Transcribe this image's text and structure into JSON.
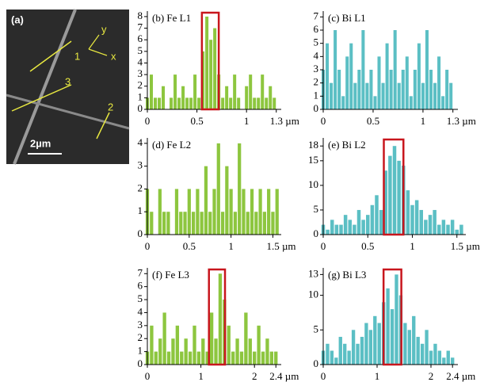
{
  "image": {
    "panel_label": "(a)",
    "line_labels": [
      "1",
      "2",
      "3"
    ],
    "axis_labels": [
      "y",
      "x"
    ],
    "scale_label": "2µm"
  },
  "chart_data": [
    {
      "type": "bar",
      "title": "(b) Fe L1",
      "color": "#8dc63f",
      "xlim": [
        0,
        1.35
      ],
      "ylim": [
        0,
        8.2
      ],
      "xticks": [
        0,
        0.5,
        1,
        {
          "value": 1.3,
          "label": "1.3 µm"
        }
      ],
      "yticks": [
        0,
        1,
        2,
        3,
        4,
        5,
        6,
        7,
        8
      ],
      "highlight": [
        0.55,
        0.72
      ],
      "x": [
        0,
        0.04,
        0.08,
        0.12,
        0.16,
        0.2,
        0.24,
        0.28,
        0.32,
        0.36,
        0.4,
        0.44,
        0.48,
        0.52,
        0.56,
        0.6,
        0.64,
        0.68,
        0.72,
        0.76,
        0.8,
        0.84,
        0.88,
        0.92,
        0.96,
        1,
        1.04,
        1.08,
        1.12,
        1.16,
        1.2,
        1.24,
        1.28
      ],
      "values": [
        1,
        3,
        1,
        1,
        2,
        0,
        1,
        3,
        1,
        2,
        1,
        1,
        3,
        1,
        5,
        8,
        6,
        7,
        3,
        1,
        2,
        1,
        3,
        1,
        0,
        2,
        3,
        1,
        1,
        3,
        1,
        2,
        1
      ]
    },
    {
      "type": "bar",
      "title": "(c) Bi L1",
      "color": "#5bbfc4",
      "xlim": [
        0,
        1.35
      ],
      "ylim": [
        0,
        7.2
      ],
      "xticks": [
        0,
        0.5,
        1,
        {
          "value": 1.3,
          "label": "1.3 µm"
        }
      ],
      "yticks": [
        0,
        1,
        2,
        3,
        4,
        5,
        6,
        7
      ],
      "x": [
        0,
        0.04,
        0.08,
        0.12,
        0.16,
        0.2,
        0.24,
        0.28,
        0.32,
        0.36,
        0.4,
        0.44,
        0.48,
        0.52,
        0.56,
        0.6,
        0.64,
        0.68,
        0.72,
        0.76,
        0.8,
        0.84,
        0.88,
        0.92,
        0.96,
        1,
        1.04,
        1.08,
        1.12,
        1.16,
        1.2,
        1.24,
        1.28
      ],
      "values": [
        3,
        5,
        2,
        6,
        3,
        1,
        4,
        5,
        2,
        3,
        6,
        2,
        3,
        1,
        4,
        2,
        5,
        3,
        6,
        2,
        3,
        4,
        1,
        3,
        5,
        2,
        6,
        3,
        2,
        4,
        1,
        3,
        2
      ]
    },
    {
      "type": "bar",
      "title": "(d) Fe L2",
      "color": "#8dc63f",
      "xlim": [
        0,
        1.6
      ],
      "ylim": [
        0,
        4.1
      ],
      "xticks": [
        0,
        0.5,
        1,
        {
          "value": 1.5,
          "label": "1.5 µm"
        }
      ],
      "yticks": [
        0,
        1,
        2,
        3,
        4
      ],
      "x": [
        0,
        0.05,
        0.1,
        0.15,
        0.2,
        0.25,
        0.3,
        0.35,
        0.4,
        0.45,
        0.5,
        0.55,
        0.6,
        0.65,
        0.7,
        0.75,
        0.8,
        0.85,
        0.9,
        0.95,
        1,
        1.05,
        1.1,
        1.15,
        1.2,
        1.25,
        1.3,
        1.35,
        1.4,
        1.45,
        1.5,
        1.55
      ],
      "values": [
        2,
        1,
        0,
        2,
        1,
        1,
        0,
        2,
        1,
        1,
        2,
        1,
        2,
        1,
        3,
        1,
        2,
        4,
        1,
        3,
        2,
        1,
        4,
        2,
        1,
        2,
        1,
        2,
        1,
        2,
        1,
        2
      ]
    },
    {
      "type": "bar",
      "title": "(e) Bi L2",
      "color": "#5bbfc4",
      "xlim": [
        0,
        1.6
      ],
      "ylim": [
        0,
        19
      ],
      "xticks": [
        0,
        0.5,
        1,
        {
          "value": 1.5,
          "label": "1.5 µm"
        }
      ],
      "yticks": [
        0,
        5,
        10,
        15,
        18
      ],
      "highlight": [
        0.68,
        0.9
      ],
      "x": [
        0,
        0.05,
        0.1,
        0.15,
        0.2,
        0.25,
        0.3,
        0.35,
        0.4,
        0.45,
        0.5,
        0.55,
        0.6,
        0.65,
        0.7,
        0.75,
        0.8,
        0.85,
        0.9,
        0.95,
        1,
        1.05,
        1.1,
        1.15,
        1.2,
        1.25,
        1.3,
        1.35,
        1.4,
        1.45,
        1.5,
        1.55
      ],
      "values": [
        2,
        1,
        3,
        2,
        2,
        4,
        3,
        2,
        5,
        3,
        4,
        6,
        8,
        5,
        13,
        16,
        18,
        15,
        14,
        9,
        6,
        7,
        5,
        3,
        4,
        5,
        2,
        3,
        2,
        3,
        1,
        2
      ]
    },
    {
      "type": "bar",
      "title": "(f) Fe L3",
      "color": "#8dc63f",
      "xlim": [
        0,
        2.5
      ],
      "ylim": [
        0,
        7.2
      ],
      "xticks": [
        0,
        1,
        2,
        {
          "value": 2.4,
          "label": "2.4 µm"
        }
      ],
      "yticks": [
        0,
        1,
        2,
        3,
        4,
        5,
        6,
        7
      ],
      "highlight": [
        1.15,
        1.45
      ],
      "x": [
        0,
        0.08,
        0.16,
        0.24,
        0.32,
        0.4,
        0.48,
        0.56,
        0.64,
        0.72,
        0.8,
        0.88,
        0.96,
        1.04,
        1.12,
        1.2,
        1.28,
        1.36,
        1.44,
        1.52,
        1.6,
        1.68,
        1.76,
        1.84,
        1.92,
        2,
        2.08,
        2.16,
        2.24,
        2.32,
        2.4
      ],
      "values": [
        1,
        3,
        1,
        2,
        4,
        1,
        2,
        3,
        1,
        2,
        1,
        3,
        1,
        2,
        1,
        4,
        2,
        7,
        5,
        3,
        1,
        2,
        1,
        4,
        2,
        1,
        3,
        1,
        2,
        1,
        1
      ]
    },
    {
      "type": "bar",
      "title": "(g) Bi L3",
      "color": "#5bbfc4",
      "xlim": [
        0,
        2.5
      ],
      "ylim": [
        0,
        13.5
      ],
      "xticks": [
        0,
        1,
        2,
        {
          "value": 2.4,
          "label": "2.4 µm"
        }
      ],
      "yticks": [
        0,
        5,
        10,
        13
      ],
      "highlight": [
        1.12,
        1.45
      ],
      "x": [
        0,
        0.08,
        0.16,
        0.24,
        0.32,
        0.4,
        0.48,
        0.56,
        0.64,
        0.72,
        0.8,
        0.88,
        0.96,
        1.04,
        1.12,
        1.2,
        1.28,
        1.36,
        1.44,
        1.52,
        1.6,
        1.68,
        1.76,
        1.84,
        1.92,
        2,
        2.08,
        2.16,
        2.24,
        2.32,
        2.4
      ],
      "values": [
        2,
        3,
        2,
        1,
        4,
        3,
        2,
        5,
        3,
        4,
        6,
        5,
        7,
        6,
        9,
        11,
        8,
        13,
        10,
        6,
        5,
        7,
        4,
        3,
        5,
        2,
        3,
        2,
        1,
        2,
        1
      ]
    }
  ]
}
